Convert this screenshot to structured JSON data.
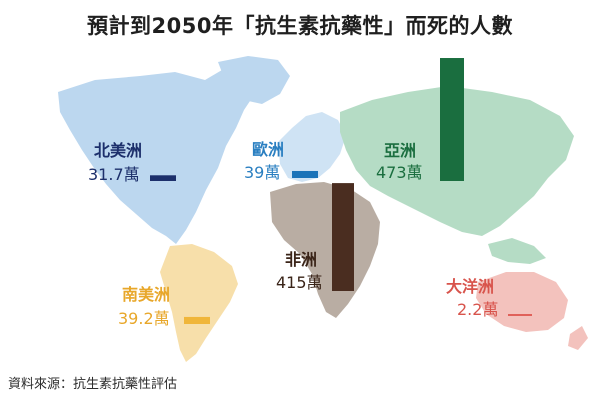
{
  "title": "預計到2050年「抗生素抗藥性」而死的人數",
  "source": "資料來源：抗生素抗藥性評估",
  "chart_data": {
    "type": "bar",
    "title": "預計到2050年「抗生素抗藥性」而死的人數",
    "unit": "萬",
    "categories": [
      "北美洲",
      "歐洲",
      "亞洲",
      "非洲",
      "南美洲",
      "大洋洲"
    ],
    "values": [
      31.7,
      39,
      473,
      415,
      39.2,
      2.2
    ],
    "value_labels": [
      "31.7萬",
      "39萬",
      "473萬",
      "415萬",
      "39.2萬",
      "2.2萬"
    ],
    "series_colors": [
      "#1c2f6b",
      "#1b73b8",
      "#1a6e3f",
      "#4a2d20",
      "#f0b63a",
      "#e0615a"
    ],
    "label_colors": [
      "#1c2f6b",
      "#2a7fc1",
      "#1a6e3f",
      "#3a2418",
      "#e8a72a",
      "#d8544c"
    ]
  }
}
